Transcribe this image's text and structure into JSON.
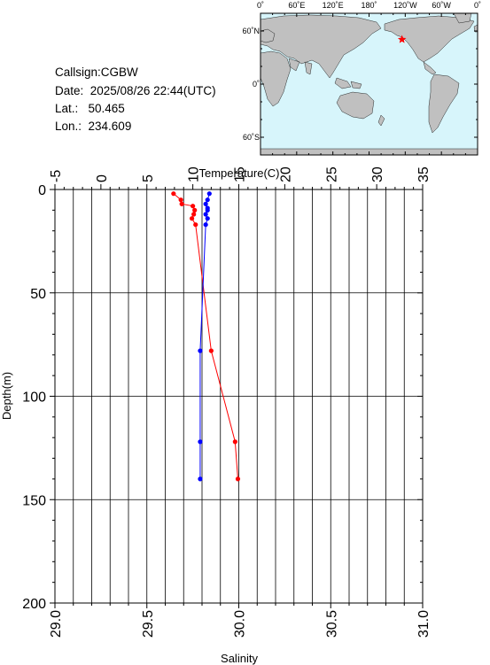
{
  "header": {
    "callsign_line": "Callsign:CGBW",
    "date_line": "Date:  2025/08/26 22:44(UTC)",
    "lat_line": "Lat.:   50.465",
    "lon_line": "Lon.:  234.609"
  },
  "map": {
    "lon_labels": [
      "0˚",
      "60˚E",
      "120˚E",
      "180˚",
      "120˚W",
      "60˚W",
      "0˚"
    ],
    "lat_labels": [
      "60˚N",
      "0˚",
      "60˚S"
    ],
    "ocean_color": "#d7f5fb",
    "land_color": "#c0c0c0",
    "station": {
      "lon": 234.609,
      "lat": 50.465,
      "marker_color": "#ff0000",
      "marker": "star"
    }
  },
  "chart_data": {
    "type": "scatter",
    "top_axis": {
      "label": "Temperature(C)",
      "range": [
        -5,
        35
      ],
      "ticks": [
        "-5",
        "0",
        "5",
        "10",
        "15",
        "20",
        "25",
        "30",
        "35"
      ]
    },
    "bottom_axis": {
      "label": "Salinity",
      "range": [
        29.0,
        31.0
      ],
      "ticks": [
        "29.0",
        "29.5",
        "30.0",
        "30.5",
        "31.0"
      ]
    },
    "y_axis": {
      "label": "Depth(m)",
      "range": [
        0,
        200
      ],
      "inverted": true,
      "ticks": [
        "0",
        "50",
        "100",
        "150",
        "200"
      ]
    },
    "grid": true,
    "series": [
      {
        "color": "#ff0000",
        "axis": "top",
        "connected": true,
        "points": [
          {
            "x": 7.9,
            "y": 2
          },
          {
            "x": 8.7,
            "y": 5
          },
          {
            "x": 8.8,
            "y": 7
          },
          {
            "x": 10.0,
            "y": 8
          },
          {
            "x": 10.2,
            "y": 10
          },
          {
            "x": 10.1,
            "y": 12
          },
          {
            "x": 9.9,
            "y": 14
          },
          {
            "x": 10.3,
            "y": 17
          },
          {
            "x": 12.0,
            "y": 78
          },
          {
            "x": 14.6,
            "y": 122
          },
          {
            "x": 14.9,
            "y": 140
          }
        ]
      },
      {
        "color": "#0000ff",
        "axis": "bottom",
        "connected": true,
        "points": [
          {
            "x": 29.84,
            "y": 2
          },
          {
            "x": 29.83,
            "y": 5
          },
          {
            "x": 29.82,
            "y": 7
          },
          {
            "x": 29.83,
            "y": 9
          },
          {
            "x": 29.83,
            "y": 10
          },
          {
            "x": 29.82,
            "y": 12
          },
          {
            "x": 29.83,
            "y": 14
          },
          {
            "x": 29.82,
            "y": 17
          },
          {
            "x": 29.79,
            "y": 78
          },
          {
            "x": 29.79,
            "y": 122
          },
          {
            "x": 29.79,
            "y": 140
          }
        ]
      }
    ]
  }
}
